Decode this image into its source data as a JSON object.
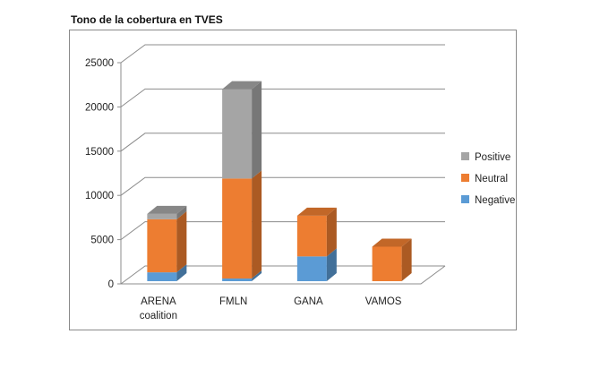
{
  "chart_data": {
    "type": "bar",
    "stacked": true,
    "three_d": true,
    "title": "Tono de la cobertura en TVES",
    "categories": [
      "ARENA coalition",
      "FMLN",
      "GANA",
      "VAMOS"
    ],
    "category_lines": [
      [
        "ARENA",
        "coalition"
      ],
      [
        "FMLN"
      ],
      [
        "GANA"
      ],
      [
        "VAMOS"
      ]
    ],
    "series": [
      {
        "name": "Negative",
        "color": "#5B9BD5",
        "values": [
          1000,
          300,
          2800,
          0
        ]
      },
      {
        "name": "Neutral",
        "color": "#ED7D31",
        "values": [
          6000,
          11300,
          4600,
          3900
        ]
      },
      {
        "name": "Positive",
        "color": "#A5A5A5",
        "values": [
          600,
          10100,
          0,
          0
        ]
      }
    ],
    "legend_order": [
      "Positive",
      "Neutral",
      "Negative"
    ],
    "ylim": [
      0,
      25000
    ],
    "yticks": [
      0,
      5000,
      10000,
      15000,
      20000,
      25000
    ],
    "grid": true,
    "legend_position": "right"
  }
}
